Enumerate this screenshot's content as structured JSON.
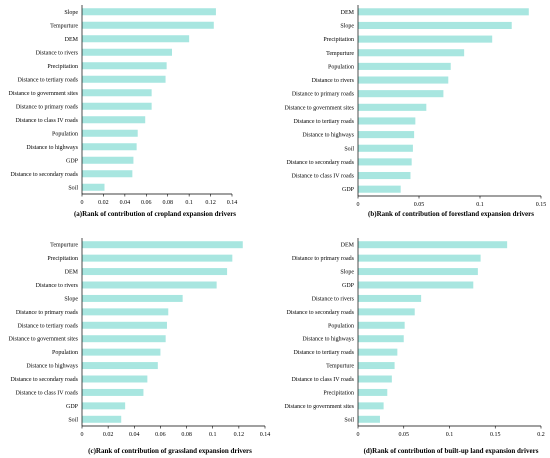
{
  "colors": {
    "bar": "#a8e6e0",
    "axis": "#000000"
  },
  "chart_data": [
    {
      "type": "bar",
      "orientation": "horizontal",
      "caption": "(a)Rank of contribution of cropland expansion drivers",
      "categories": [
        "Slope",
        "Tempurture",
        "DEM",
        "Distance to rivers",
        "Precipitation",
        "Distance to tertiary roads",
        "Distance to government sites",
        "Distance to primary roads",
        "Distance to class IV roads",
        "Population",
        "Distance to highways",
        "GDP",
        "Distance to secondary roads",
        "Soil"
      ],
      "values": [
        0.125,
        0.123,
        0.1,
        0.084,
        0.079,
        0.078,
        0.065,
        0.065,
        0.059,
        0.052,
        0.051,
        0.048,
        0.047,
        0.021
      ],
      "xlim": [
        0,
        0.14
      ],
      "xticks": [
        "0",
        "0.02",
        "0.04",
        "0.06",
        "0.08",
        "0.1",
        "0.12",
        "0.14"
      ]
    },
    {
      "type": "bar",
      "orientation": "horizontal",
      "caption": "(b)Rank of contribution of forestland expansion drivers",
      "categories": [
        "DEM",
        "Slope",
        "Precipitation",
        "Tempurture",
        "Population",
        "Distance to rivers",
        "Distance to primary roads",
        "Distance to government sites",
        "Distance to tertiary roads",
        "Distance to highways",
        "Soil",
        "Distance to secondary roads",
        "Distance to class IV roads",
        "GDP"
      ],
      "values": [
        0.14,
        0.126,
        0.11,
        0.087,
        0.076,
        0.074,
        0.07,
        0.056,
        0.047,
        0.046,
        0.045,
        0.044,
        0.043,
        0.035
      ],
      "xlim": [
        0,
        0.15
      ],
      "xticks": [
        "0",
        "0.05",
        "0.1",
        "0.15"
      ]
    },
    {
      "type": "bar",
      "orientation": "horizontal",
      "caption": "(c)Rank of contribution of grassland expansion drivers",
      "categories": [
        "Tempurture",
        "Precipitation",
        "DEM",
        "Distance to rivers",
        "Slope",
        "Distance to primary roads",
        "Distance to tertiary roads",
        "Distance to government sites",
        "Population",
        "Distance to highways",
        "Distance to secondary roads",
        "Distance to class IV roads",
        "GDP",
        "Soil"
      ],
      "values": [
        0.123,
        0.115,
        0.111,
        0.103,
        0.077,
        0.066,
        0.065,
        0.064,
        0.06,
        0.058,
        0.05,
        0.047,
        0.033,
        0.03
      ],
      "xlim": [
        0,
        0.14
      ],
      "xticks": [
        "0",
        "0.02",
        "0.04",
        "0.06",
        "0.08",
        "0.1",
        "0.12",
        "0.14"
      ]
    },
    {
      "type": "bar",
      "orientation": "horizontal",
      "caption": "(d)Rank of contribution of built-up land expansion drivers",
      "categories": [
        "DEM",
        "Distance to primary roads",
        "Slope",
        "GDP",
        "Distance to rivers",
        "Distance to secondary roads",
        "Population",
        "Distance to highways",
        "Distance to tertiary roads",
        "Tempurture",
        "Distance to class IV roads",
        "Precipitation",
        "Distance to government sites",
        "Soil"
      ],
      "values": [
        0.163,
        0.134,
        0.131,
        0.126,
        0.069,
        0.062,
        0.051,
        0.05,
        0.043,
        0.04,
        0.037,
        0.032,
        0.028,
        0.024
      ],
      "xlim": [
        0,
        0.2
      ],
      "xticks": [
        "0",
        "0.05",
        "0.1",
        "0.15",
        "0.2"
      ]
    }
  ]
}
